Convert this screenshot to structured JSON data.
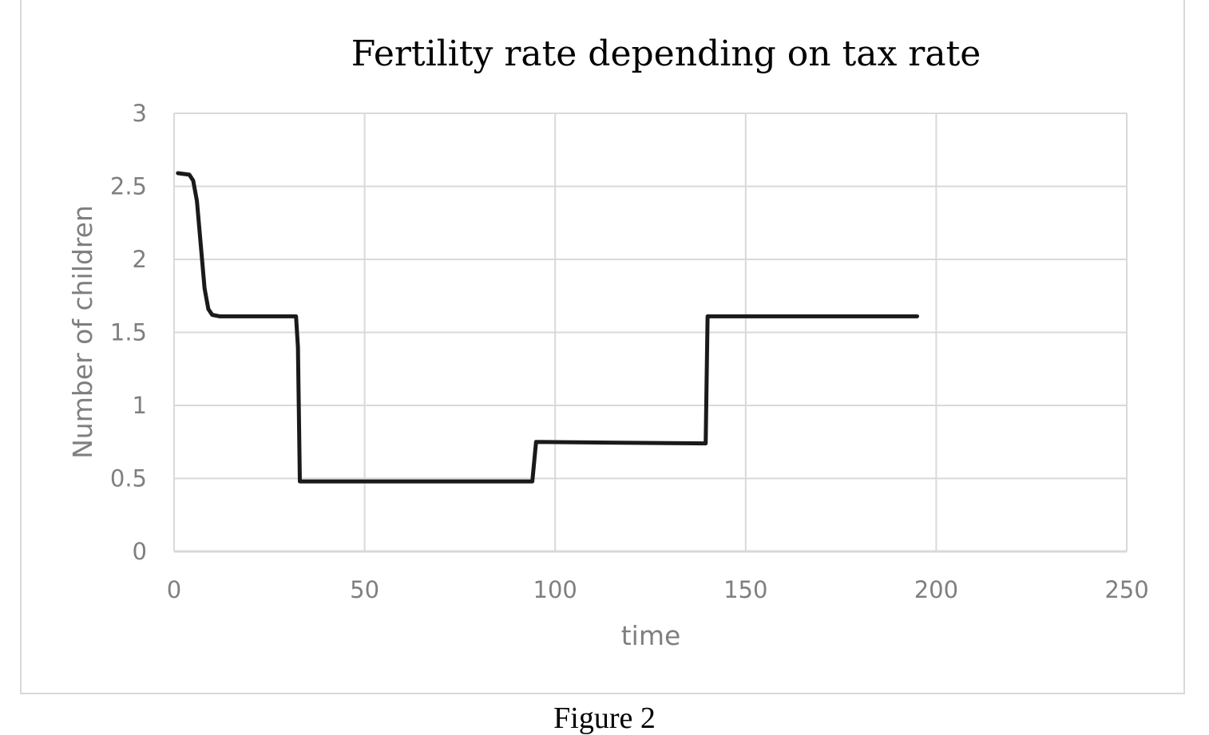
{
  "chart_data": {
    "type": "line",
    "title": "Fertility rate depending on tax rate",
    "xlabel": "time",
    "ylabel": "Number of children",
    "xlim": [
      0,
      250
    ],
    "ylim": [
      0,
      3
    ],
    "x_ticks": [
      "0",
      "50",
      "100",
      "150",
      "200",
      "250"
    ],
    "y_ticks": [
      "0",
      "0.5",
      "1",
      "1.5",
      "2",
      "2.5",
      "3"
    ],
    "grid": true,
    "legend": "none",
    "line_color": "#1a1a1a",
    "series": [
      {
        "points": [
          [
            1,
            2.59
          ],
          [
            4,
            2.58
          ],
          [
            5,
            2.54
          ],
          [
            6,
            2.4
          ],
          [
            7,
            2.1
          ],
          [
            8,
            1.8
          ],
          [
            9,
            1.66
          ],
          [
            10,
            1.62
          ],
          [
            12,
            1.61
          ],
          [
            32,
            1.61
          ],
          [
            32.5,
            1.4
          ],
          [
            33,
            0.48
          ],
          [
            94,
            0.48
          ],
          [
            95,
            0.75
          ],
          [
            139.5,
            0.74
          ],
          [
            140,
            1.61
          ],
          [
            195,
            1.61
          ]
        ]
      }
    ]
  },
  "caption": "Figure 2"
}
